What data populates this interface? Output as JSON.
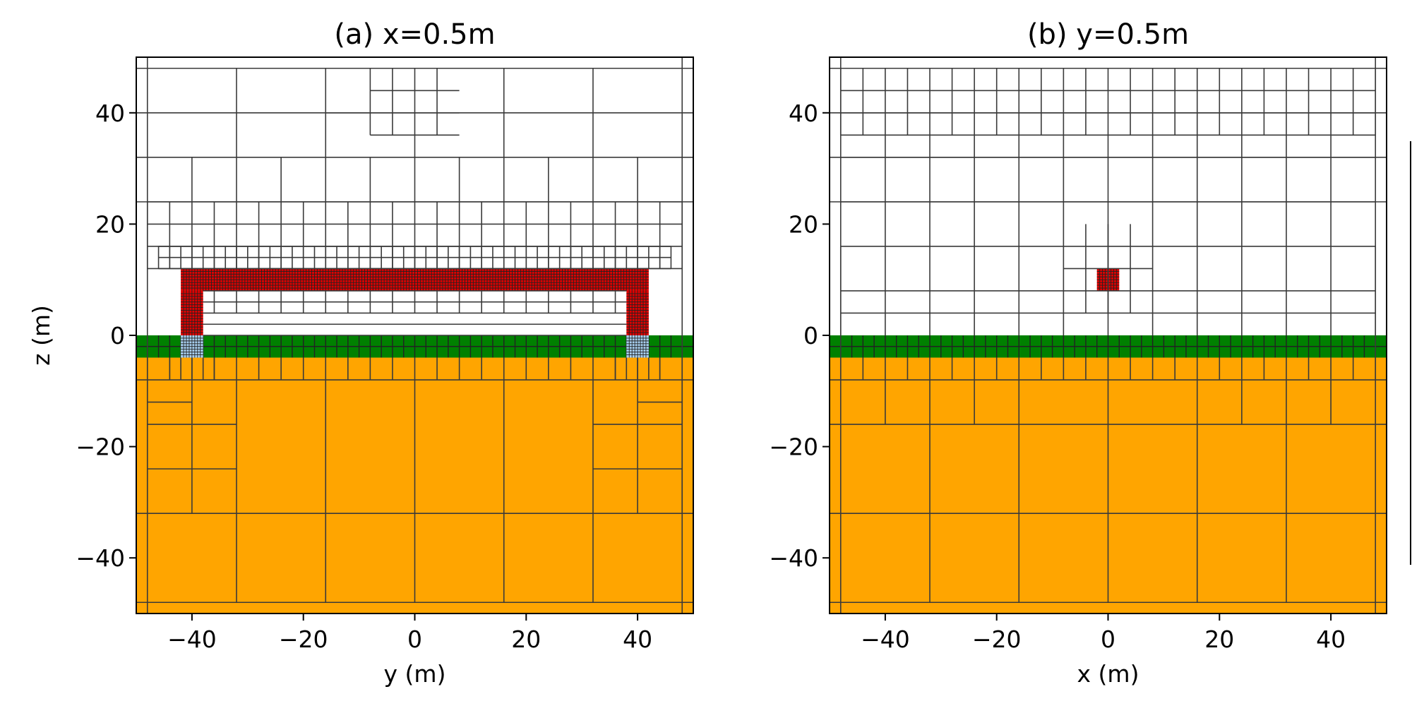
{
  "chart_data": [
    {
      "type": "heatmap",
      "title": "(a) x=0.5m",
      "xlabel": "y (m)",
      "ylabel": "z (m)",
      "xlim": [
        -50,
        50
      ],
      "ylim": [
        -50,
        50
      ],
      "xticks": [
        -40,
        -20,
        0,
        20,
        40
      ],
      "yticks": [
        -40,
        -20,
        0,
        20,
        40
      ],
      "colors": {
        "soil": "#ffa500",
        "layer": "#008000",
        "pipe": "#e00000",
        "footing": "#a8d0f0"
      },
      "regions": [
        {
          "name": "soil",
          "x": [
            -50,
            50
          ],
          "z": [
            -50,
            -4
          ]
        },
        {
          "name": "layer",
          "x": [
            -50,
            50
          ],
          "z": [
            -4,
            0
          ]
        },
        {
          "name": "pipe",
          "x": [
            -42,
            42
          ],
          "z": [
            8,
            12
          ]
        },
        {
          "name": "pipe",
          "x": [
            -42,
            -38
          ],
          "z": [
            0,
            8
          ]
        },
        {
          "name": "pipe",
          "x": [
            38,
            42
          ],
          "z": [
            0,
            8
          ]
        },
        {
          "name": "footing",
          "x": [
            -42,
            -38
          ],
          "z": [
            -4,
            0
          ]
        },
        {
          "name": "footing",
          "x": [
            38,
            42
          ],
          "z": [
            -4,
            0
          ]
        }
      ]
    },
    {
      "type": "heatmap",
      "title": "(b) y=0.5m",
      "xlabel": "x (m)",
      "ylabel": "",
      "xlim": [
        -50,
        50
      ],
      "ylim": [
        -50,
        50
      ],
      "xticks": [
        -40,
        -20,
        0,
        20,
        40
      ],
      "yticks": [
        -40,
        -20,
        0,
        20,
        40
      ],
      "colors": {
        "soil": "#ffa500",
        "layer": "#008000",
        "pipe": "#e00000"
      },
      "regions": [
        {
          "name": "soil",
          "x": [
            -50,
            50
          ],
          "z": [
            -50,
            -4
          ]
        },
        {
          "name": "layer",
          "x": [
            -50,
            50
          ],
          "z": [
            -4,
            0
          ]
        },
        {
          "name": "pipe",
          "x": [
            -2,
            2
          ],
          "z": [
            8,
            12
          ]
        }
      ]
    }
  ]
}
